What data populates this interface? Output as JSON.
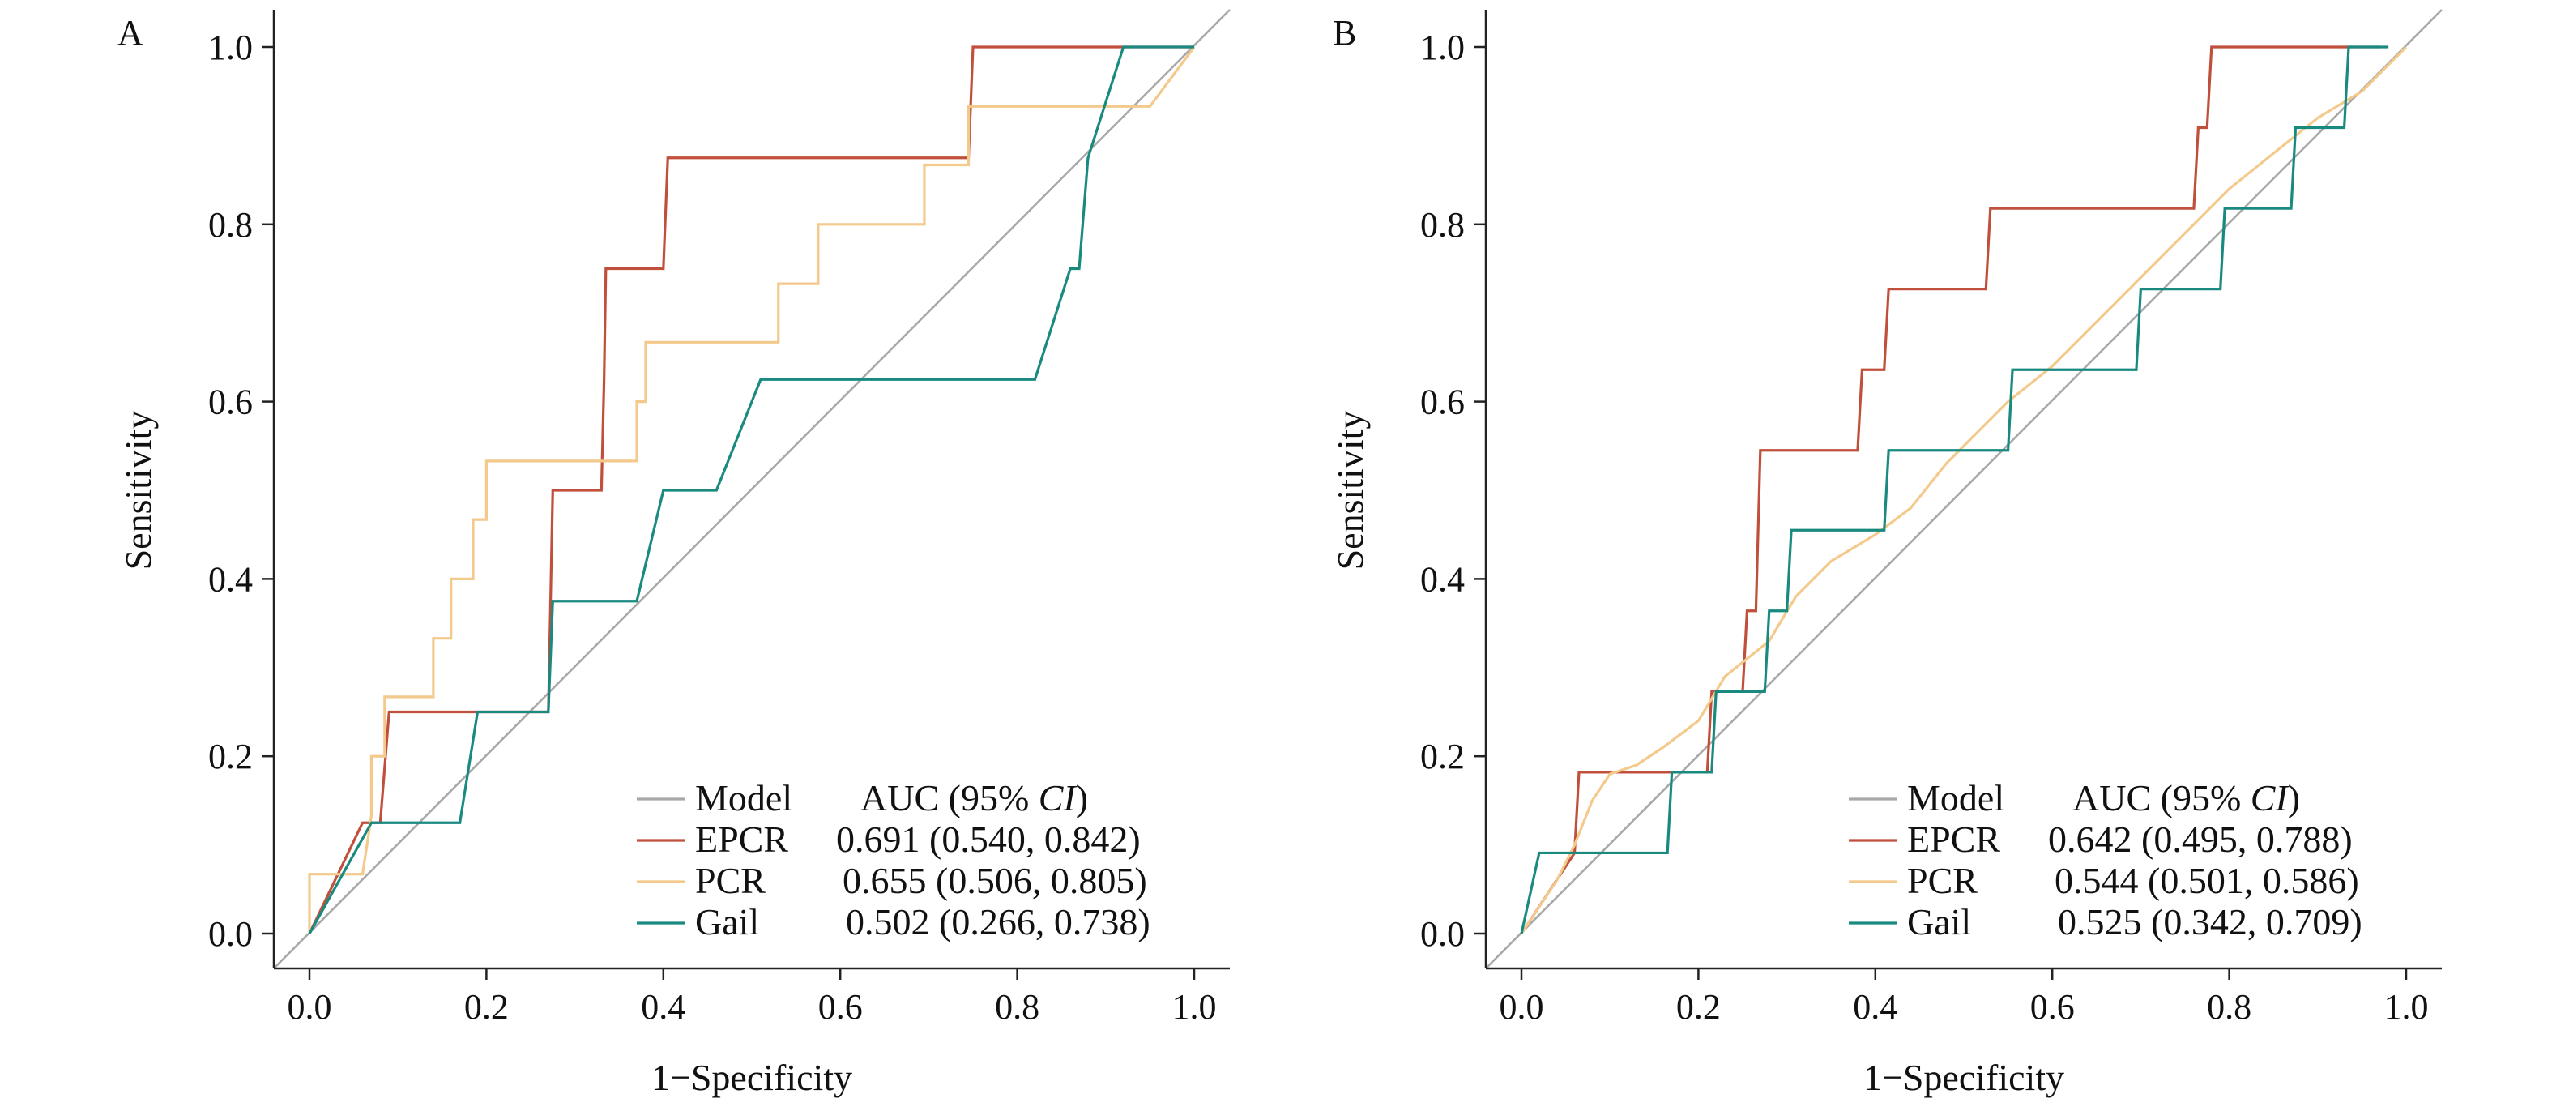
{
  "figure": {
    "panels": [
      {
        "label": "A",
        "xlabel": "1−Specificity",
        "ylabel": "Sensitivity"
      },
      {
        "label": "B",
        "xlabel": "1−Specificity",
        "ylabel": "Sensitivity"
      }
    ]
  },
  "chart_data": [
    {
      "type": "line",
      "panel": "A",
      "title": "",
      "xlabel": "1−Specificity",
      "ylabel": "Sensitivity",
      "xlim": [
        0,
        1
      ],
      "ylim": [
        0,
        1
      ],
      "x_ticks": [
        "0.0",
        "0.2",
        "0.4",
        "0.6",
        "0.8",
        "1.0"
      ],
      "y_ticks": [
        "0.0",
        "0.2",
        "0.4",
        "0.6",
        "0.8",
        "1.0"
      ],
      "grid": false,
      "legend_position": "bottom-right",
      "legend_header": {
        "model": "Model",
        "auc_prefix": "AUC (95% ",
        "auc_italic": "CI",
        "auc_suffix": ")"
      },
      "series": [
        {
          "name": "EPCR",
          "auc": "0.691 (0.540, 0.842)",
          "color": "#C0503C",
          "points": [
            [
              0,
              0
            ],
            [
              0.06,
              0.125
            ],
            [
              0.08,
              0.125
            ],
            [
              0.09,
              0.25
            ],
            [
              0.27,
              0.25
            ],
            [
              0.275,
              0.5
            ],
            [
              0.33,
              0.5
            ],
            [
              0.333,
              0.625
            ],
            [
              0.335,
              0.75
            ],
            [
              0.4,
              0.75
            ],
            [
              0.405,
              0.875
            ],
            [
              0.745,
              0.875
            ],
            [
              0.75,
              1.0
            ],
            [
              1.0,
              1.0
            ]
          ]
        },
        {
          "name": "PCR",
          "auc": "0.655 (0.506, 0.805)",
          "color": "#F4C98C",
          "points": [
            [
              0,
              0
            ],
            [
              0,
              0.067
            ],
            [
              0.06,
              0.067
            ],
            [
              0.07,
              0.133
            ],
            [
              0.07,
              0.2
            ],
            [
              0.085,
              0.2
            ],
            [
              0.085,
              0.267
            ],
            [
              0.14,
              0.267
            ],
            [
              0.14,
              0.333
            ],
            [
              0.16,
              0.333
            ],
            [
              0.16,
              0.4
            ],
            [
              0.185,
              0.4
            ],
            [
              0.185,
              0.467
            ],
            [
              0.2,
              0.467
            ],
            [
              0.2,
              0.533
            ],
            [
              0.37,
              0.533
            ],
            [
              0.37,
              0.6
            ],
            [
              0.38,
              0.6
            ],
            [
              0.38,
              0.667
            ],
            [
              0.53,
              0.667
            ],
            [
              0.53,
              0.733
            ],
            [
              0.575,
              0.733
            ],
            [
              0.575,
              0.8
            ],
            [
              0.695,
              0.8
            ],
            [
              0.695,
              0.867
            ],
            [
              0.745,
              0.867
            ],
            [
              0.745,
              0.933
            ],
            [
              0.95,
              0.933
            ],
            [
              1.0,
              1.0
            ]
          ]
        },
        {
          "name": "Gail",
          "auc": "0.502 (0.266, 0.738)",
          "color": "#1A8A80",
          "points": [
            [
              0,
              0
            ],
            [
              0.07,
              0.125
            ],
            [
              0.17,
              0.125
            ],
            [
              0.19,
              0.25
            ],
            [
              0.27,
              0.25
            ],
            [
              0.275,
              0.375
            ],
            [
              0.37,
              0.375
            ],
            [
              0.4,
              0.5
            ],
            [
              0.46,
              0.5
            ],
            [
              0.51,
              0.625
            ],
            [
              0.82,
              0.625
            ],
            [
              0.86,
              0.75
            ],
            [
              0.87,
              0.75
            ],
            [
              0.88,
              0.875
            ],
            [
              0.92,
              1.0
            ],
            [
              1.0,
              1.0
            ]
          ]
        }
      ]
    },
    {
      "type": "line",
      "panel": "B",
      "title": "",
      "xlabel": "1−Specificity",
      "ylabel": "Sensitivity",
      "xlim": [
        0,
        1
      ],
      "ylim": [
        0,
        1
      ],
      "x_ticks": [
        "0.0",
        "0.2",
        "0.4",
        "0.6",
        "0.8",
        "1.0"
      ],
      "y_ticks": [
        "0.0",
        "0.2",
        "0.4",
        "0.6",
        "0.8",
        "1.0"
      ],
      "grid": false,
      "legend_position": "bottom-right",
      "legend_header": {
        "model": "Model",
        "auc_prefix": "AUC (95% ",
        "auc_italic": "CI",
        "auc_suffix": ")"
      },
      "series": [
        {
          "name": "EPCR",
          "auc": "0.642 (0.495, 0.788)",
          "color": "#C0503C",
          "points": [
            [
              0,
              0
            ],
            [
              0.06,
              0.091
            ],
            [
              0.065,
              0.182
            ],
            [
              0.21,
              0.182
            ],
            [
              0.215,
              0.273
            ],
            [
              0.25,
              0.273
            ],
            [
              0.255,
              0.364
            ],
            [
              0.265,
              0.364
            ],
            [
              0.27,
              0.545
            ],
            [
              0.38,
              0.545
            ],
            [
              0.385,
              0.636
            ],
            [
              0.41,
              0.636
            ],
            [
              0.415,
              0.727
            ],
            [
              0.525,
              0.727
            ],
            [
              0.53,
              0.818
            ],
            [
              0.76,
              0.818
            ],
            [
              0.765,
              0.909
            ],
            [
              0.775,
              0.909
            ],
            [
              0.78,
              1.0
            ],
            [
              0.97,
              1.0
            ]
          ]
        },
        {
          "name": "PCR",
          "auc": "0.544 (0.501, 0.586)",
          "color": "#F4C98C",
          "points": [
            [
              0,
              0
            ],
            [
              0.04,
              0.06
            ],
            [
              0.06,
              0.1
            ],
            [
              0.08,
              0.15
            ],
            [
              0.1,
              0.18
            ],
            [
              0.13,
              0.19
            ],
            [
              0.16,
              0.21
            ],
            [
              0.2,
              0.24
            ],
            [
              0.23,
              0.29
            ],
            [
              0.28,
              0.33
            ],
            [
              0.31,
              0.38
            ],
            [
              0.35,
              0.42
            ],
            [
              0.4,
              0.45
            ],
            [
              0.44,
              0.48
            ],
            [
              0.48,
              0.53
            ],
            [
              0.52,
              0.57
            ],
            [
              0.55,
              0.6
            ],
            [
              0.6,
              0.64
            ],
            [
              0.64,
              0.68
            ],
            [
              0.68,
              0.72
            ],
            [
              0.72,
              0.76
            ],
            [
              0.75,
              0.79
            ],
            [
              0.8,
              0.84
            ],
            [
              0.85,
              0.88
            ],
            [
              0.9,
              0.92
            ],
            [
              0.95,
              0.95
            ],
            [
              1.0,
              1.0
            ]
          ]
        },
        {
          "name": "Gail",
          "auc": "0.525 (0.342, 0.709)",
          "color": "#1A8A80",
          "points": [
            [
              0,
              0
            ],
            [
              0.02,
              0.091
            ],
            [
              0.165,
              0.091
            ],
            [
              0.17,
              0.182
            ],
            [
              0.215,
              0.182
            ],
            [
              0.22,
              0.273
            ],
            [
              0.275,
              0.273
            ],
            [
              0.28,
              0.364
            ],
            [
              0.3,
              0.364
            ],
            [
              0.305,
              0.455
            ],
            [
              0.41,
              0.455
            ],
            [
              0.415,
              0.545
            ],
            [
              0.55,
              0.545
            ],
            [
              0.555,
              0.636
            ],
            [
              0.695,
              0.636
            ],
            [
              0.7,
              0.727
            ],
            [
              0.79,
              0.727
            ],
            [
              0.795,
              0.818
            ],
            [
              0.87,
              0.818
            ],
            [
              0.875,
              0.909
            ],
            [
              0.93,
              0.909
            ],
            [
              0.935,
              1.0
            ],
            [
              0.98,
              1.0
            ]
          ]
        }
      ]
    }
  ]
}
